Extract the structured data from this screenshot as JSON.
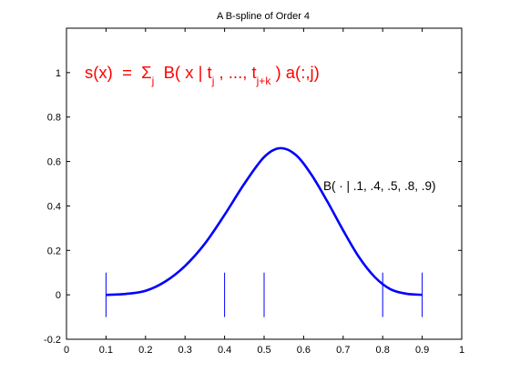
{
  "chart_data": {
    "type": "line",
    "title": "A B-spline of Order 4",
    "xlabel": "",
    "ylabel": "",
    "xlim": [
      0,
      1
    ],
    "ylim": [
      -0.2,
      1.2
    ],
    "grid": false,
    "xticks": [
      "0",
      "0.1",
      "0.2",
      "0.3",
      "0.4",
      "0.5",
      "0.6",
      "0.7",
      "0.8",
      "0.9",
      "1"
    ],
    "yticks": [
      "-0.2",
      "0",
      "0.2",
      "0.4",
      "0.6",
      "0.8",
      "1"
    ],
    "series": [
      {
        "color": "#0000ff",
        "x": [
          0.1,
          0.15,
          0.2,
          0.25,
          0.3,
          0.35,
          0.4,
          0.45,
          0.5,
          0.54,
          0.58,
          0.62,
          0.66,
          0.7,
          0.74,
          0.78,
          0.82,
          0.86,
          0.9
        ],
        "y": [
          0,
          0.004,
          0.018,
          0.06,
          0.13,
          0.23,
          0.36,
          0.5,
          0.62,
          0.66,
          0.63,
          0.54,
          0.42,
          0.29,
          0.17,
          0.08,
          0.025,
          0.005,
          0
        ]
      }
    ],
    "knots": [
      {
        "x": 0.1,
        "ymin": -0.1,
        "ymax": 0.1
      },
      {
        "x": 0.4,
        "ymin": -0.1,
        "ymax": 0.1
      },
      {
        "x": 0.5,
        "ymin": -0.1,
        "ymax": 0.1
      },
      {
        "x": 0.8,
        "ymin": -0.1,
        "ymax": 0.1
      },
      {
        "x": 0.9,
        "ymin": -0.1,
        "ymax": 0.1
      }
    ],
    "annotations": {
      "curve_label": "B( · | .1, .4, .5, .8, .9)",
      "formula": {
        "lhs": "s(x)  =  Σ",
        "sub_j1": "j",
        "mid1": "  B( x | t",
        "sub_j2": "j",
        "mid2": " , ..., t",
        "sub_jk": "j+k",
        "rhs": " ) a(:,j)",
        "color": "#ff0000"
      }
    }
  }
}
